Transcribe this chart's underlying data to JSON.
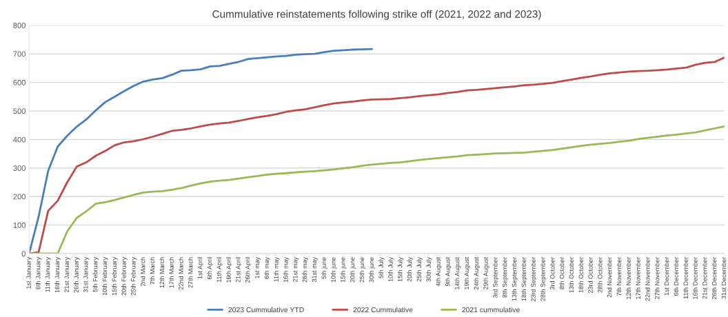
{
  "chart_data": {
    "type": "line",
    "title": "Cummulative reinstatements following strike off (2021, 2022 and 2023)",
    "categories": [
      "1st January",
      "6th January",
      "11th January",
      "16th January",
      "21st January",
      "26th January",
      "31st January",
      "5th February",
      "10th February",
      "15th February",
      "20th February",
      "25th February",
      "2nd March",
      "7th March",
      "12th March",
      "17th March",
      "22nd March",
      "27th March",
      "1st April",
      "6th April",
      "11th April",
      "16th April",
      "21st April",
      "26th April",
      "1st may",
      "6th may",
      "11th may",
      "16th may",
      "21st may",
      "26th may",
      "31st may",
      "5th june",
      "10th june",
      "15th june",
      "20th june",
      "25th june",
      "30th june",
      "5th July",
      "10th July",
      "15th July",
      "20th July",
      "25th July",
      "30th July",
      "4th August",
      "9th August",
      "14th August",
      "19th August",
      "24th August",
      "29th August",
      "3rd September",
      "8th September",
      "13th September",
      "18th September",
      "23rd September",
      "28th September",
      "3rd October",
      "8th October",
      "13th October",
      "18th October",
      "23rd October",
      "28th October",
      "2nd November",
      "7th November",
      "12th November",
      "17th November",
      "22nd November",
      "27th November",
      "1st December",
      "6th December",
      "11th December",
      "16th December",
      "21st December",
      "26th December",
      "31st December"
    ],
    "ylim": [
      0,
      800
    ],
    "yticks": [
      0,
      100,
      200,
      300,
      400,
      500,
      600,
      700,
      800
    ],
    "grid": "y",
    "legend": "bottom",
    "series": [
      {
        "name": "2023 Cummulative YTD",
        "color": "#4a7ebb",
        "values": [
          0,
          130,
          290,
          375,
          413,
          445,
          470,
          502,
          531,
          550,
          570,
          588,
          603,
          610,
          615,
          627,
          641,
          643,
          646,
          656,
          658,
          665,
          672,
          682,
          685,
          688,
          691,
          693,
          697,
          699,
          700,
          706,
          711,
          713,
          715,
          716,
          717,
          null,
          null,
          null,
          null,
          null,
          null,
          null,
          null,
          null,
          null,
          null,
          null,
          null,
          null,
          null,
          null,
          null,
          null,
          null,
          null,
          null,
          null,
          null,
          null,
          null,
          null,
          null,
          null,
          null,
          null,
          null,
          null,
          null,
          null,
          null,
          null,
          null
        ]
      },
      {
        "name": "2022 Cummulative",
        "color": "#be4b48",
        "values": [
          0,
          5,
          150,
          185,
          250,
          305,
          320,
          343,
          360,
          380,
          390,
          394,
          401,
          410,
          420,
          430,
          434,
          439,
          446,
          452,
          456,
          459,
          465,
          472,
          478,
          483,
          489,
          497,
          502,
          506,
          513,
          520,
          526,
          530,
          533,
          537,
          540,
          541,
          542,
          545,
          548,
          552,
          555,
          558,
          563,
          567,
          572,
          574,
          577,
          580,
          583,
          586,
          590,
          592,
          595,
          599,
          605,
          610,
          616,
          621,
          627,
          632,
          635,
          638,
          640,
          641,
          643,
          645,
          649,
          652,
          662,
          669,
          672,
          687
        ]
      },
      {
        "name": "2021 cummulative",
        "color": "#98b954",
        "values": [
          0,
          0,
          0,
          0,
          78,
          125,
          148,
          175,
          180,
          188,
          197,
          206,
          214,
          217,
          219,
          224,
          230,
          238,
          246,
          252,
          256,
          258,
          263,
          268,
          272,
          277,
          280,
          282,
          285,
          287,
          289,
          292,
          295,
          299,
          303,
          308,
          312,
          315,
          318,
          320,
          324,
          328,
          332,
          335,
          338,
          341,
          345,
          347,
          349,
          351,
          352,
          353,
          354,
          357,
          360,
          363,
          368,
          373,
          378,
          382,
          385,
          388,
          392,
          396,
          402,
          406,
          410,
          414,
          417,
          421,
          425,
          432,
          439,
          446
        ]
      }
    ]
  }
}
